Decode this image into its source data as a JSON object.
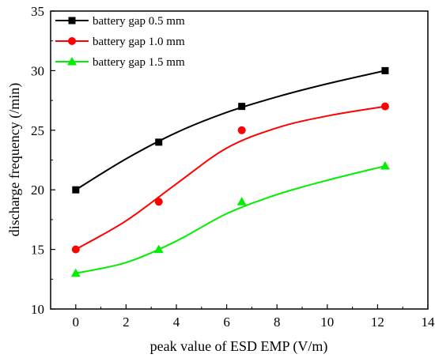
{
  "chart_data": {
    "type": "line",
    "xlabel": "peak value of ESD EMP (V/m)",
    "ylabel": "discharge frequency (/min)",
    "xlim": [
      -1,
      14
    ],
    "ylim": [
      10,
      35
    ],
    "xticks": [
      0,
      2,
      4,
      6,
      8,
      10,
      12,
      14
    ],
    "yticks": [
      10,
      15,
      20,
      25,
      30,
      35
    ],
    "legend_position": "top-left",
    "grid": false,
    "series": [
      {
        "name": "battery gap 0.5 mm",
        "color": "#000000",
        "marker": "square",
        "points": [
          {
            "x": 0,
            "y": 20
          },
          {
            "x": 3.3,
            "y": 24
          },
          {
            "x": 6.6,
            "y": 27
          },
          {
            "x": 12.3,
            "y": 30
          }
        ],
        "fit": [
          {
            "x": 0,
            "y": 20
          },
          {
            "x": 2,
            "y": 22.6
          },
          {
            "x": 4,
            "y": 24.8
          },
          {
            "x": 6,
            "y": 26.5
          },
          {
            "x": 8,
            "y": 27.8
          },
          {
            "x": 10,
            "y": 28.9
          },
          {
            "x": 12.3,
            "y": 30
          }
        ]
      },
      {
        "name": "battery gap 1.0 mm",
        "color": "#ff0000",
        "marker": "circle",
        "points": [
          {
            "x": 0,
            "y": 15
          },
          {
            "x": 3.3,
            "y": 19
          },
          {
            "x": 6.6,
            "y": 25
          },
          {
            "x": 12.3,
            "y": 27
          }
        ],
        "fit": [
          {
            "x": 0,
            "y": 15
          },
          {
            "x": 2,
            "y": 17.4
          },
          {
            "x": 4,
            "y": 20.5
          },
          {
            "x": 6,
            "y": 23.5
          },
          {
            "x": 8,
            "y": 25.2
          },
          {
            "x": 10,
            "y": 26.2
          },
          {
            "x": 12.3,
            "y": 27
          }
        ]
      },
      {
        "name": "battery gap 1.5 mm",
        "color": "#00ee00",
        "marker": "triangle",
        "points": [
          {
            "x": 0,
            "y": 13
          },
          {
            "x": 3.3,
            "y": 15
          },
          {
            "x": 6.6,
            "y": 19
          },
          {
            "x": 12.3,
            "y": 22
          }
        ],
        "fit": [
          {
            "x": 0,
            "y": 13
          },
          {
            "x": 2,
            "y": 13.9
          },
          {
            "x": 4,
            "y": 15.7
          },
          {
            "x": 6,
            "y": 18
          },
          {
            "x": 8,
            "y": 19.6
          },
          {
            "x": 10,
            "y": 20.8
          },
          {
            "x": 12.3,
            "y": 22
          }
        ]
      }
    ]
  }
}
